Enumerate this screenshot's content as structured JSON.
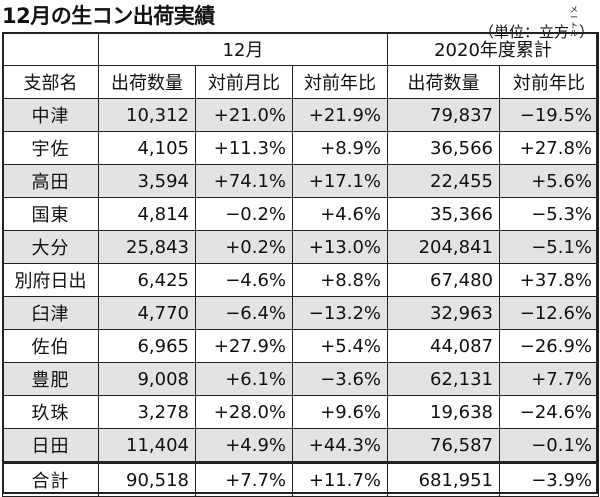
{
  "title": "12月の生コン出荷実績",
  "unit": {
    "prefix": "（単位：立方",
    "small": "メートル",
    "suffix": "）"
  },
  "header": {
    "group_month": "12月",
    "group_year": "2020年度累計",
    "col_branch": "支部名",
    "col_month_volume": "出荷数量",
    "col_month_prev_month": "対前月比",
    "col_month_prev_year": "対前年比",
    "col_year_volume": "出荷数量",
    "col_year_prev_year": "対前年比"
  },
  "rows": [
    {
      "name": "中津",
      "month_volume": "10,312",
      "prev_month": "+21.0%",
      "prev_year": "+21.9%",
      "year_volume": "79,837",
      "year_prev_year": "−19.5%"
    },
    {
      "name": "宇佐",
      "month_volume": "4,105",
      "prev_month": "+11.3%",
      "prev_year": "+8.9%",
      "year_volume": "36,566",
      "year_prev_year": "+27.8%"
    },
    {
      "name": "高田",
      "month_volume": "3,594",
      "prev_month": "+74.1%",
      "prev_year": "+17.1%",
      "year_volume": "22,455",
      "year_prev_year": "+5.6%"
    },
    {
      "name": "国東",
      "month_volume": "4,814",
      "prev_month": "−0.2%",
      "prev_year": "+4.6%",
      "year_volume": "35,366",
      "year_prev_year": "−5.3%"
    },
    {
      "name": "大分",
      "month_volume": "25,843",
      "prev_month": "+0.2%",
      "prev_year": "+13.0%",
      "year_volume": "204,841",
      "year_prev_year": "−5.1%"
    },
    {
      "name": "別府日出",
      "month_volume": "6,425",
      "prev_month": "−4.6%",
      "prev_year": "+8.8%",
      "year_volume": "67,480",
      "year_prev_year": "+37.8%"
    },
    {
      "name": "臼津",
      "month_volume": "4,770",
      "prev_month": "−6.4%",
      "prev_year": "−13.2%",
      "year_volume": "32,963",
      "year_prev_year": "−12.6%"
    },
    {
      "name": "佐伯",
      "month_volume": "6,965",
      "prev_month": "+27.9%",
      "prev_year": "+5.4%",
      "year_volume": "44,087",
      "year_prev_year": "−26.9%"
    },
    {
      "name": "豊肥",
      "month_volume": "9,008",
      "prev_month": "+6.1%",
      "prev_year": "−3.6%",
      "year_volume": "62,131",
      "year_prev_year": "+7.7%"
    },
    {
      "name": "玖珠",
      "month_volume": "3,278",
      "prev_month": "+28.0%",
      "prev_year": "+9.6%",
      "year_volume": "19,638",
      "year_prev_year": "−24.6%"
    },
    {
      "name": "日田",
      "month_volume": "11,404",
      "prev_month": "+4.9%",
      "prev_year": "+44.3%",
      "year_volume": "76,587",
      "year_prev_year": "−0.1%"
    }
  ],
  "total": {
    "name": "合計",
    "month_volume": "90,518",
    "prev_month": "+7.7%",
    "prev_year": "+11.7%",
    "year_volume": "681,951",
    "year_prev_year": "−3.9%"
  },
  "colors": {
    "shade": "#e3e3e3",
    "border": "#222222",
    "text": "#111111"
  }
}
